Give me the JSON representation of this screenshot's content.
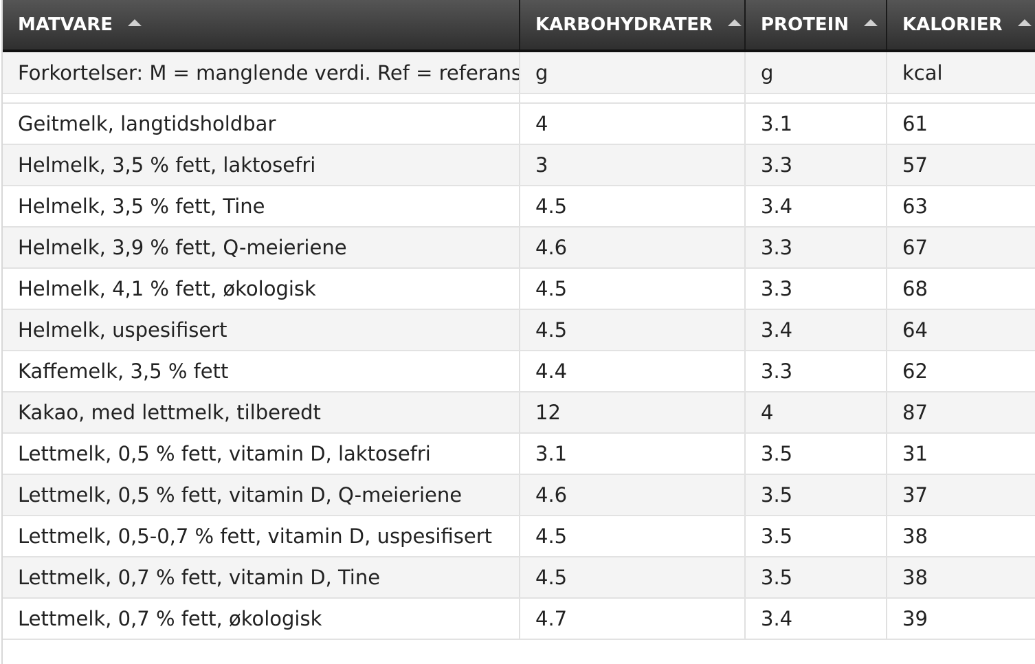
{
  "table": {
    "headers": [
      {
        "label": "MATVARE"
      },
      {
        "label": "KARBOHYDRATER"
      },
      {
        "label": "PROTEIN"
      },
      {
        "label": "KALORIER"
      }
    ],
    "units": {
      "note": "Forkortelser: M = manglende verdi. Ref = referanse",
      "carbs": "g",
      "protein": "g",
      "calories": "kcal"
    },
    "rows": [
      {
        "name": "Geitmelk, langtidsholdbar",
        "carbs": "4",
        "protein": "3.1",
        "calories": "61"
      },
      {
        "name": "Helmelk, 3,5 % fett, laktosefri",
        "carbs": "3",
        "protein": "3.3",
        "calories": "57"
      },
      {
        "name": "Helmelk, 3,5 % fett, Tine",
        "carbs": "4.5",
        "protein": "3.4",
        "calories": "63"
      },
      {
        "name": "Helmelk, 3,9 % fett, Q-meieriene",
        "carbs": "4.6",
        "protein": "3.3",
        "calories": "67"
      },
      {
        "name": "Helmelk, 4,1 % fett, økologisk",
        "carbs": "4.5",
        "protein": "3.3",
        "calories": "68"
      },
      {
        "name": "Helmelk, uspesifisert",
        "carbs": "4.5",
        "protein": "3.4",
        "calories": "64"
      },
      {
        "name": "Kaffemelk, 3,5 % fett",
        "carbs": "4.4",
        "protein": "3.3",
        "calories": "62"
      },
      {
        "name": "Kakao, med lettmelk, tilberedt",
        "carbs": "12",
        "protein": "4",
        "calories": "87"
      },
      {
        "name": "Lettmelk, 0,5 % fett, vitamin D, laktosefri",
        "carbs": "3.1",
        "protein": "3.5",
        "calories": "31"
      },
      {
        "name": "Lettmelk, 0,5 % fett, vitamin D, Q-meieriene",
        "carbs": "4.6",
        "protein": "3.5",
        "calories": "37"
      },
      {
        "name": "Lettmelk, 0,5-0,7 % fett, vitamin D, uspesifisert",
        "carbs": "4.5",
        "protein": "3.5",
        "calories": "38"
      },
      {
        "name": "Lettmelk, 0,7 % fett, vitamin D, Tine",
        "carbs": "4.5",
        "protein": "3.5",
        "calories": "38"
      },
      {
        "name": "Lettmelk, 0,7 % fett, økologisk",
        "carbs": "4.7",
        "protein": "3.4",
        "calories": "39"
      }
    ]
  },
  "icons": {
    "sort": "sort-ascending-icon"
  },
  "colors": {
    "header_bg": "#3a3a3a",
    "header_text": "#ffffff",
    "stripe": "#f4f4f4"
  }
}
